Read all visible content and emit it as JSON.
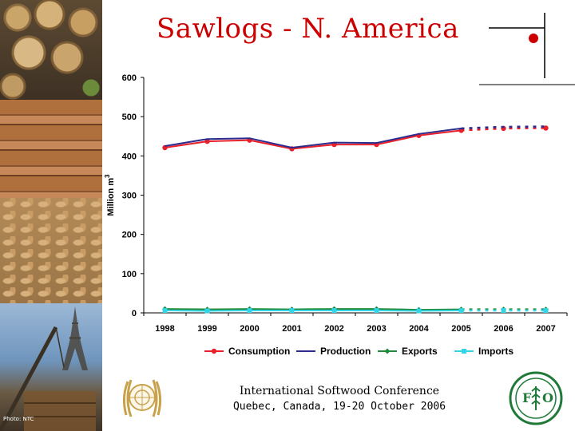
{
  "slide": {
    "title": "Sawlogs - N. America",
    "photo_credit": "Photo: NTC"
  },
  "footer": {
    "conference": "International Softwood Conference",
    "location_date": "Quebec, Canada, 19-20 October 2006"
  },
  "chart_data": {
    "type": "line",
    "title": "",
    "xlabel": "",
    "ylabel": "Million m3",
    "ylabel_main": "Million m",
    "ylabel_sup": "3",
    "x": [
      "1998",
      "1999",
      "2000",
      "2001",
      "2002",
      "2003",
      "2004",
      "2005",
      "2006",
      "2007"
    ],
    "ylim": [
      0,
      600
    ],
    "yticks": [
      0,
      100,
      200,
      300,
      400,
      500,
      600
    ],
    "forecast_from": "2005",
    "grid": false,
    "legend_position": "bottom",
    "series": [
      {
        "name": "Consumption",
        "color": "#e8202a",
        "marker": "circle",
        "values": [
          421,
          437,
          440,
          418,
          429,
          429,
          452,
          465,
          470,
          471
        ]
      },
      {
        "name": "Production",
        "color": "#2b2d8e",
        "marker": "none",
        "values": [
          425,
          443,
          445,
          421,
          434,
          433,
          456,
          470,
          474,
          475
        ]
      },
      {
        "name": "Exports",
        "color": "#1f8a3a",
        "marker": "diamond",
        "values": [
          10,
          9,
          10,
          9,
          10,
          10,
          8,
          9,
          9,
          9
        ]
      },
      {
        "name": "Imports",
        "color": "#33d4e6",
        "marker": "square",
        "values": [
          6,
          5,
          6,
          6,
          6,
          6,
          5,
          6,
          6,
          6
        ]
      }
    ]
  }
}
